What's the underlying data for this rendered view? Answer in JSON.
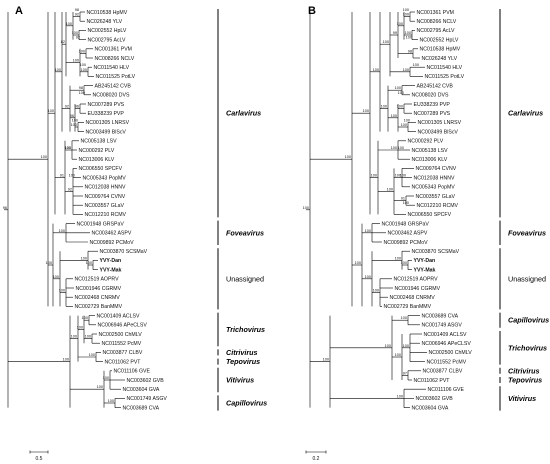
{
  "panels": [
    {
      "letter": "A",
      "scale_label": "0.5",
      "leaves": [
        "NC010538 HpMV",
        "NC026248 YLV",
        "NC002552 HpLV",
        "NC002795 AcLV",
        "NC001361 PVM",
        "NC008266 NCLV",
        "NC011540 HLV",
        "NC011525 PotLV",
        "AB245142 CVB",
        "NC008020 DVS",
        "NC007289 PVS",
        "EU338239 PVP",
        "NC001305 LNRSV",
        "NC003499 BlScV",
        "NC005138 LSV",
        "NC000292 PLV",
        "NC013006 KLV",
        "NC006550 SPCFV",
        "NC005343 PopMV",
        "NC012038 HNNV",
        "NC009764 CVNV",
        "NC003557 GLaV",
        "NC012210 RCMV",
        "NC001948 GRSPaV",
        "NC003462 ASPV",
        "NC009892 PCMoV",
        "NC003870 SCSMaV",
        "YVY-Dan",
        "YVY-Mak",
        "NC012519 AOPRV",
        "NC001946 CGRMV",
        "NC002468 CNRMV",
        "NC002729 BanMMV",
        "NC001409 ACLSV",
        "NC006946 APeCLSV",
        "NC002500 ChMLV",
        "NC011552 PcMV",
        "NC003877 CLBV",
        "NC011062 PVT",
        "NC011106 GVE",
        "NC003602 GVB",
        "NC003604 GVA",
        "NC001749 ASGV",
        "NC003689 CVA"
      ],
      "groups": [
        "Carlavirus",
        "Foveavirus",
        "Unassigned",
        "Trichovirus",
        "Citrivirus",
        "Tepovirus",
        "Vitivirus",
        "Capillovirus"
      ],
      "bootstraps": [
        "92",
        "100",
        "100",
        "100",
        "100",
        "100",
        "82",
        "98",
        "96",
        "100",
        "96",
        "92",
        "100",
        "100",
        "92",
        "91",
        "100",
        "100",
        "100",
        "100",
        "100",
        "100",
        "100",
        "100",
        "100",
        "100",
        "100",
        "100",
        "100",
        "100",
        "100",
        "100",
        "100",
        "96",
        "98",
        "92",
        "100",
        "100",
        "100",
        "100",
        "100"
      ]
    },
    {
      "letter": "B",
      "scale_label": "0.2",
      "leaves": [
        "NC001361 PVM",
        "NC008266 NCLV",
        "NC002795 AcLV",
        "NC002552 HpLV",
        "NC010538 HpMV",
        "NC026248 YLV",
        "NC011540 HLV",
        "NC011525 PotLV",
        "AB245142 CVB",
        "NC008020 DVS",
        "EU338239 PVP",
        "NC007289 PVS",
        "NC001305 LNRSV",
        "NC003499 BlScV",
        "NC000292 PLV",
        "NC005138 LSV",
        "NC013006 KLV",
        "NC009764 CVNV",
        "NC012038 HNNV",
        "NC005343 PopMV",
        "NC003557 GLaV",
        "NC012210 RCMV",
        "NC006550 SPCFV",
        "NC001948 GRSPaV",
        "NC003462 ASPV",
        "NC009892 PCMoV",
        "NC003870 SCSMaV",
        "YVY-Dan",
        "YVY-Mak",
        "NC012519 AOPRV",
        "NC001946 CGRMV",
        "NC002468 CNRMV",
        "NC002729 BanMMV",
        "NC003689 CVA",
        "NC001749 ASGV",
        "NC001409 ACLSV",
        "NC006946 APeCLSV",
        "NC002500 ChMLV",
        "NC011552 PcMV",
        "NC003877 CLBV",
        "NC011062 PVT",
        "NC011106 GVE",
        "NC003602 GVB",
        "NC003604 GVA"
      ],
      "groups": [
        "Carlavirus",
        "Foveavirus",
        "Unassigned",
        "Capillovirus",
        "Trichovirus",
        "Citrivirus",
        "Tepovirus",
        "Vitivirus"
      ],
      "bootstraps": [
        "100",
        "100",
        "100",
        "98",
        "99",
        "100",
        "100",
        "100",
        "100",
        "100",
        "100",
        "100",
        "100",
        "100",
        "100",
        "91",
        "100",
        "100",
        "100",
        "100",
        "100",
        "100",
        "100",
        "100",
        "100",
        "100",
        "100",
        "100",
        "97",
        "100",
        "100",
        "100",
        "100",
        "100",
        "100",
        "100",
        "100",
        "100",
        "100",
        "100",
        "100",
        "100"
      ]
    }
  ]
}
